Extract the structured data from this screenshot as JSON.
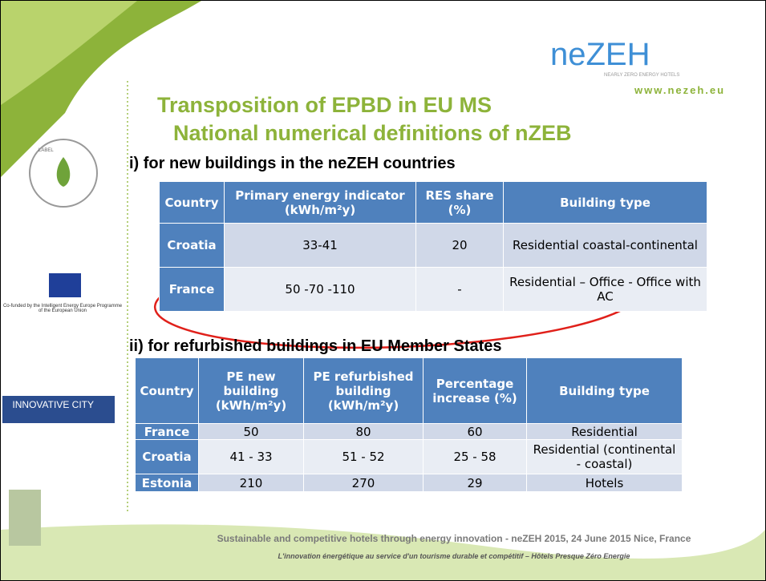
{
  "logo": {
    "name": "neZEH",
    "tagline": "NEARLY ZERO ENERGY HOTELS",
    "url": "www.nezeh.eu"
  },
  "title": {
    "line1": "Transposition of EPBD in EU MS",
    "line2": "National numerical definitions of nZEB"
  },
  "sidebar": {
    "label_badge": "LABEL",
    "eu_note": "Co-funded by the Intelligent Energy Europe Programme of the European Union",
    "innovative": "INNOVATIVE CITY"
  },
  "section1": {
    "heading": "i) for new buildings in the neZEH countries",
    "table": {
      "header": [
        "Country",
        "Primary energy indicator (kWh/m²y)",
        "RES share (%)",
        "Building type"
      ],
      "rows": [
        [
          "Croatia",
          "33-41",
          "20",
          "Residential coastal-continental"
        ],
        [
          "France",
          "50 -70 -110",
          "-",
          "Residential – Office - Office with AC"
        ]
      ]
    }
  },
  "section2": {
    "heading": "ii) for refurbished buildings in EU Member States",
    "table": {
      "header": [
        "Country",
        "PE new building (kWh/m²y)",
        "PE refurbished building (kWh/m²y)",
        "Percentage increase (%)",
        "Building type"
      ],
      "rows": [
        [
          "France",
          "50",
          "80",
          "60",
          "Residential"
        ],
        [
          "Croatia",
          "41 - 33",
          "51 - 52",
          "25 - 58",
          "Residential (continental - coastal)"
        ],
        [
          "Estonia",
          "210",
          "270",
          "29",
          "Hotels"
        ]
      ]
    }
  },
  "footer": {
    "line1": "Sustainable and competitive hotels through energy innovation - neZEH 2015, 24 June 2015 Nice, France",
    "line2": "L'innovation énergétique au service d'un tourisme durable et compétitif – Hôtels Presque Zéro Energie"
  }
}
